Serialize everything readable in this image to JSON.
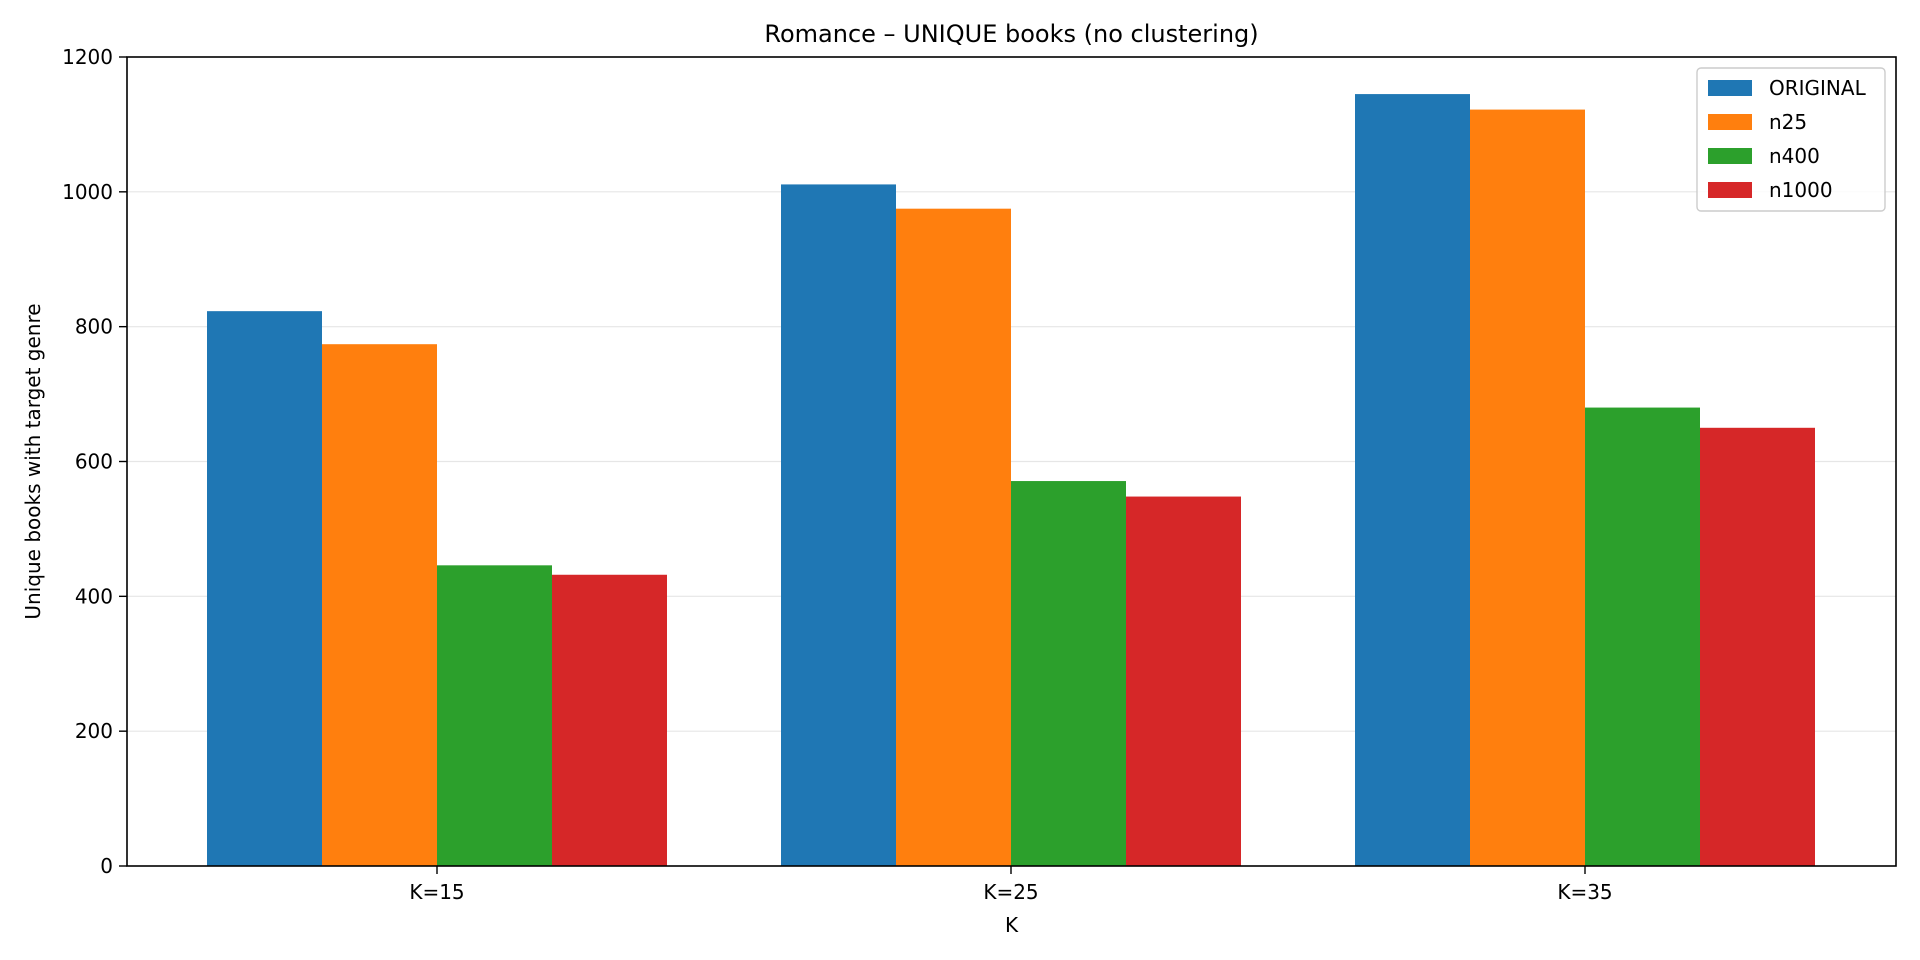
{
  "chart_data": {
    "type": "bar",
    "title": "Romance – UNIQUE books (no clustering)",
    "xlabel": "K",
    "ylabel": "Unique books with target genre",
    "categories": [
      "K=15",
      "K=25",
      "K=35"
    ],
    "series": [
      {
        "name": "ORIGINAL",
        "color": "#1f77b4",
        "values": [
          823,
          1011,
          1145
        ]
      },
      {
        "name": "n25",
        "color": "#ff7f0e",
        "values": [
          774,
          975,
          1122
        ]
      },
      {
        "name": "n400",
        "color": "#2ca02c",
        "values": [
          446,
          571,
          680
        ]
      },
      {
        "name": "n1000",
        "color": "#d62728",
        "values": [
          432,
          548,
          650
        ]
      }
    ],
    "ylim": [
      0,
      1200
    ],
    "yticks": [
      0,
      200,
      400,
      600,
      800,
      1000,
      1200
    ],
    "grid": "y",
    "legend_position": "top-right"
  }
}
